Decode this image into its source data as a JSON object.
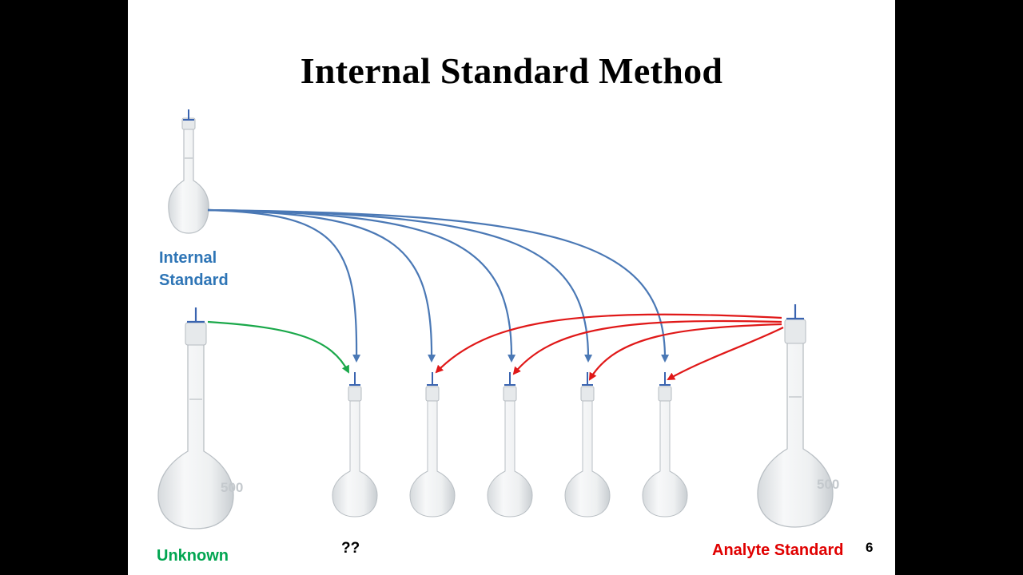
{
  "title": "Internal Standard Method",
  "labels": {
    "internal_standard_line1": "Internal",
    "internal_standard_line2": "Standard",
    "unknown": "Unknown",
    "unknown_result": "??",
    "analyte_standard": "Analyte Standard"
  },
  "slide_number": "6",
  "colors": {
    "internal_standard": "#2e75b6",
    "unknown": "#00a550",
    "analyte_standard": "#e00000"
  },
  "flasks": [
    {
      "name": "internal-standard-flask",
      "size": "medium"
    },
    {
      "name": "unknown-flask",
      "size": "large"
    },
    {
      "name": "sample-flask-1",
      "size": "small"
    },
    {
      "name": "sample-flask-2",
      "size": "small"
    },
    {
      "name": "sample-flask-3",
      "size": "small"
    },
    {
      "name": "sample-flask-4",
      "size": "small"
    },
    {
      "name": "sample-flask-5",
      "size": "small"
    },
    {
      "name": "analyte-standard-flask",
      "size": "large"
    }
  ],
  "flask_marking": "500"
}
